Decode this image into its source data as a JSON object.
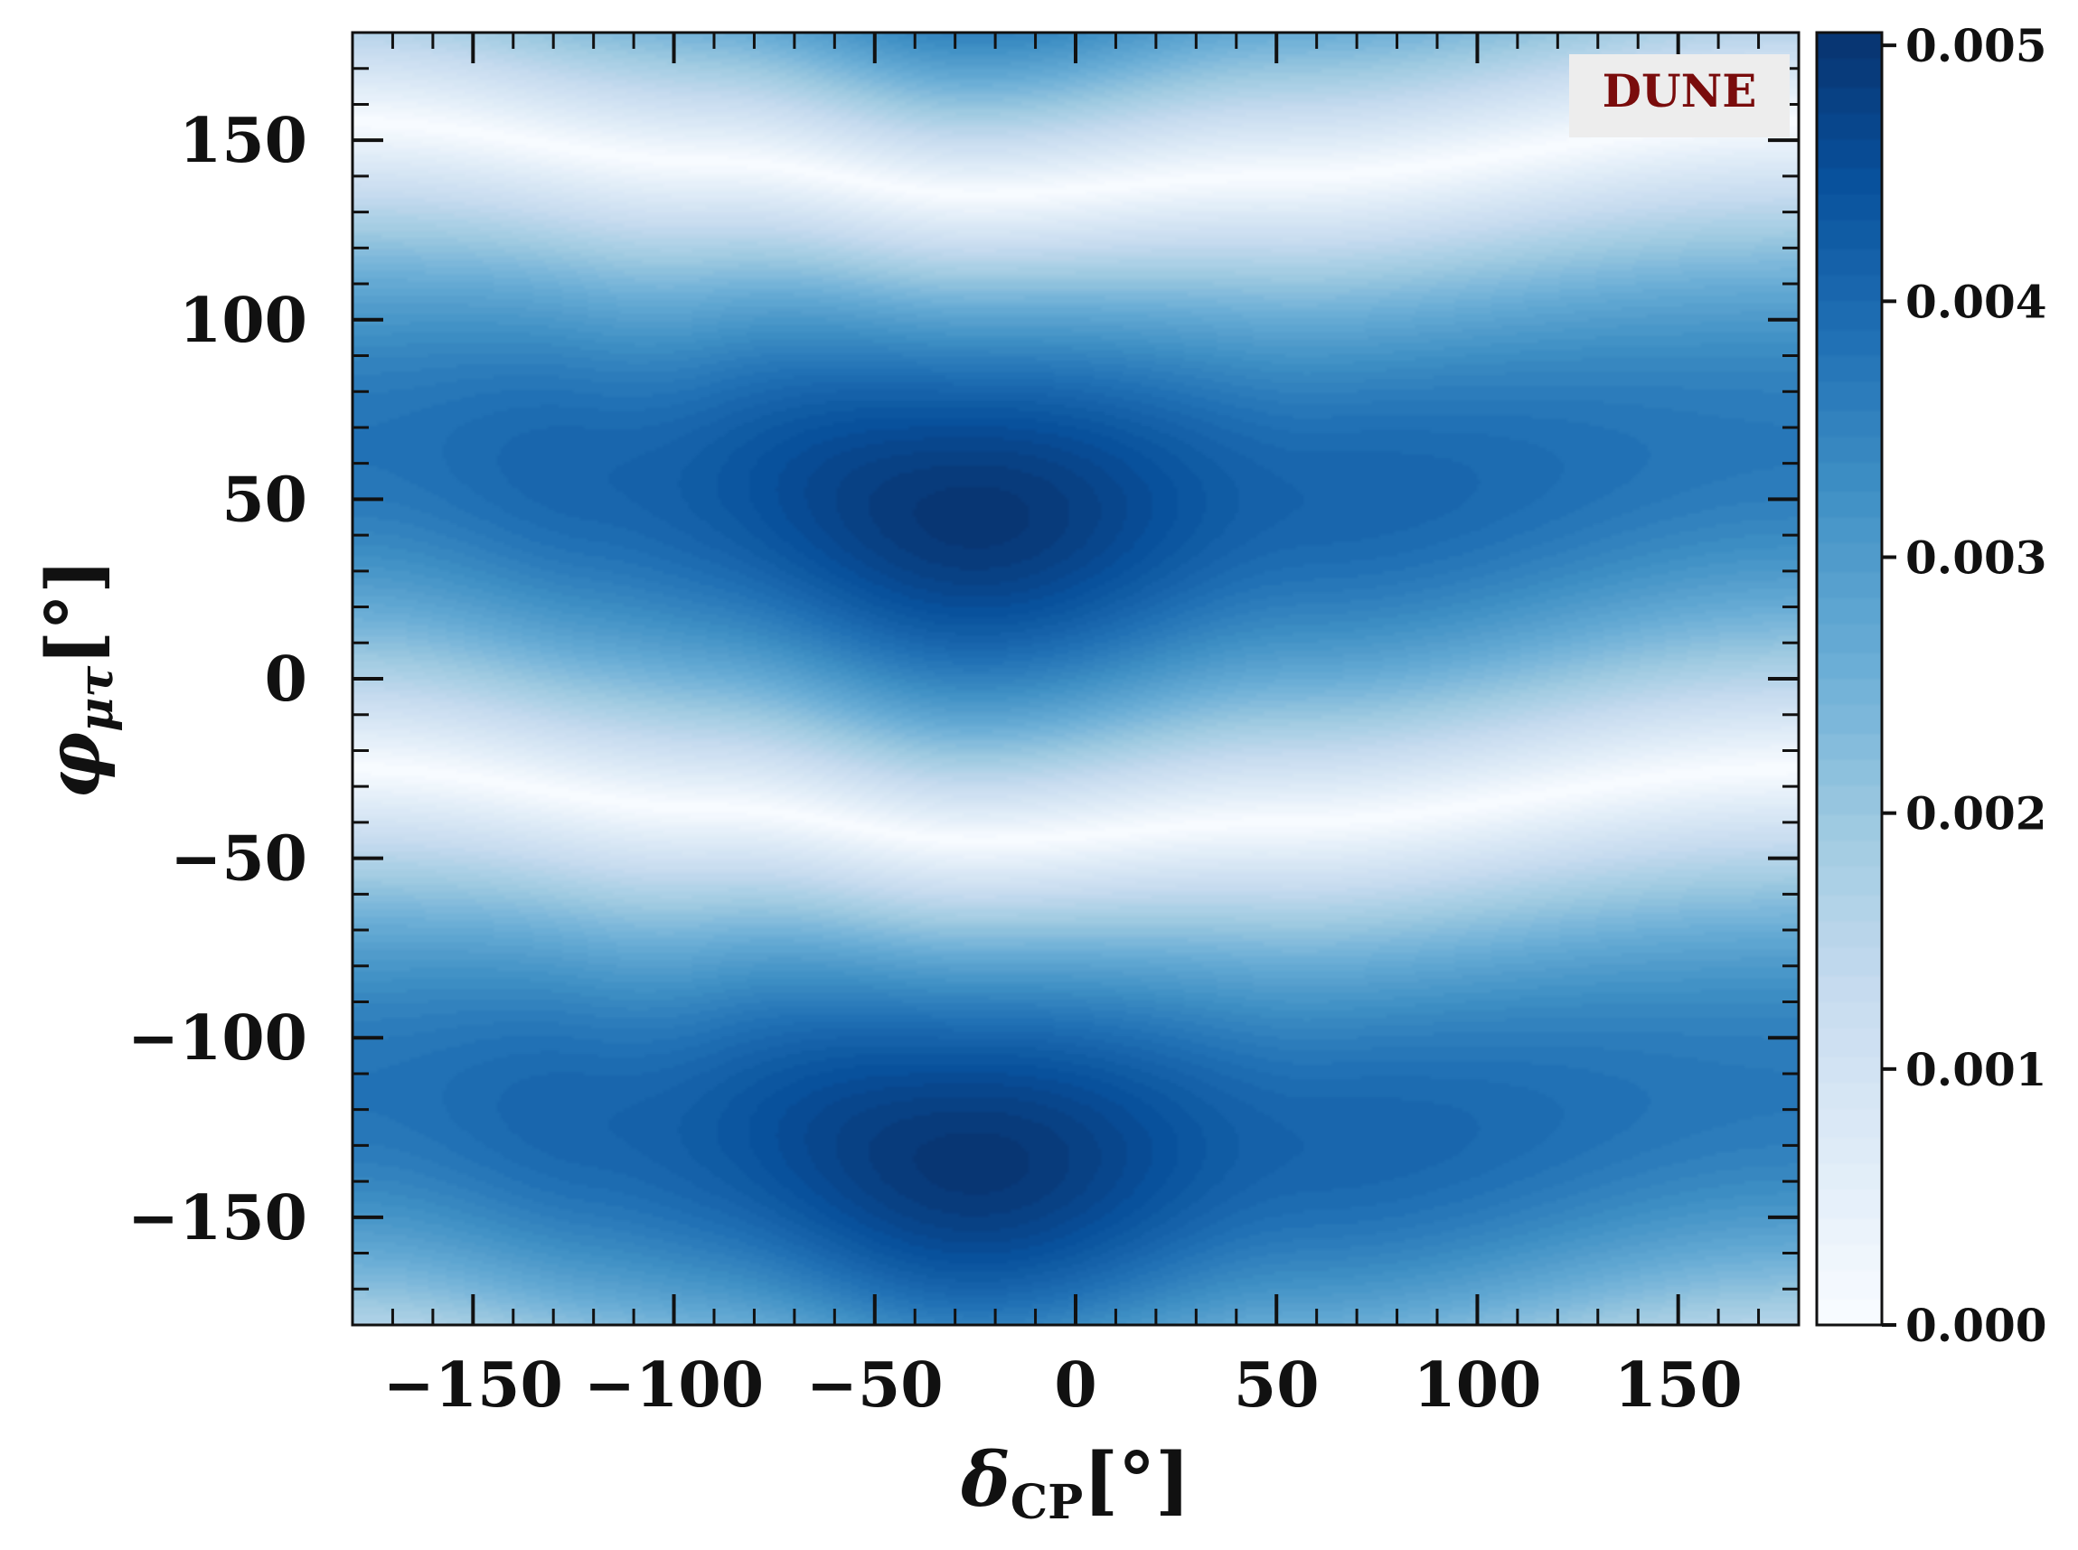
{
  "chart_data": {
    "type": "heatmap",
    "title": "",
    "annotation": "DUNE",
    "xlabel": {
      "symbol": "δ",
      "subscript": "CP",
      "unit": "[°]"
    },
    "ylabel": {
      "symbol": "φ",
      "subscript": "μτ",
      "unit": "[°]"
    },
    "xlim": [
      -180,
      180
    ],
    "ylim": [
      -180,
      180
    ],
    "x_ticks": [
      -150,
      -100,
      -50,
      0,
      50,
      100,
      150
    ],
    "x_tick_labels": [
      "−150",
      "−100",
      "−50",
      "0",
      "50",
      "100",
      "150"
    ],
    "y_ticks": [
      -150,
      -100,
      -50,
      0,
      50,
      100,
      150
    ],
    "y_tick_labels": [
      "−150",
      "−100",
      "−50",
      "0",
      "50",
      "100",
      "150"
    ],
    "colorbar": {
      "range": [
        0.0,
        0.00505
      ],
      "ticks": [
        0.0,
        0.001,
        0.002,
        0.003,
        0.004,
        0.005
      ],
      "tick_labels": [
        "0.000",
        "0.001",
        "0.002",
        "0.003",
        "0.004",
        "0.005"
      ],
      "colormap": "Blues",
      "colormap_stops": [
        "#f7fbff",
        "#deebf7",
        "#c6dbef",
        "#9ecae1",
        "#6baed6",
        "#4292c6",
        "#2171b5",
        "#08519c",
        "#08306b"
      ]
    },
    "field": {
      "description": "z(δCP, φμτ) = A(δCP)·|sin(φμτ − φ0(δCP))|, periodic in φμτ with period 180°",
      "amplitude_at_delta": [
        {
          "delta": -180,
          "amplitude": 0.0038
        },
        {
          "delta": -120,
          "amplitude": 0.0041
        },
        {
          "delta": -25,
          "amplitude": 0.005
        },
        {
          "delta": 60,
          "amplitude": 0.0041
        },
        {
          "delta": 180,
          "amplitude": 0.0037
        }
      ],
      "zero_line_phi_at_delta": [
        {
          "delta": -180,
          "phi": -25
        },
        {
          "delta": -90,
          "phi": -36
        },
        {
          "delta": -25,
          "phi": -45
        },
        {
          "delta": 50,
          "phi": -40
        },
        {
          "delta": 180,
          "phi": -25
        }
      ],
      "maxima": [
        {
          "delta": -25,
          "phi": 44,
          "value": 0.005
        },
        {
          "delta": -25,
          "phi": -136,
          "value": 0.005
        }
      ]
    }
  },
  "colors": {
    "annotation_text": "#7a0c0c",
    "annotation_bg": "#ededed",
    "axis": "#111111"
  }
}
